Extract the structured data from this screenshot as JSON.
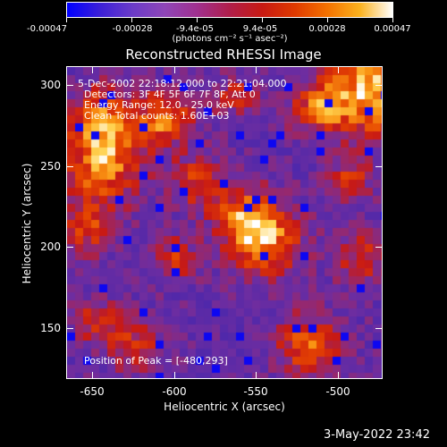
{
  "colorbar": {
    "tick_labels": [
      "-0.00047",
      "-0.00028",
      "-9.4e-05",
      "9.4e-05",
      "0.00028",
      "0.00047"
    ],
    "units": "(photons cm⁻² s⁻¹ asec⁻²)",
    "colors": [
      "#0000ff",
      "#8f46b8",
      "#c81a12",
      "#f47200",
      "#ffffff"
    ]
  },
  "title": "Reconstructed RHESSI Image",
  "annotations": {
    "time_range": "5-Dec-2002 22:18:12.000 to 22:21:04.000",
    "detectors": "Detectors: 3F 4F 5F 6F 7F 8F, Att 0",
    "energy_range": "Energy Range: 12.0 - 25.0 keV",
    "method": "Clean     Total counts: 1.60E+03",
    "peak": "Position of Peak = [-480,293]"
  },
  "axes": {
    "xlabel": "Heliocentric X (arcsec)",
    "ylabel": "Heliocentric Y (arcsec)",
    "x_ticks": [
      "-650",
      "-600",
      "-550",
      "-500"
    ],
    "y_ticks": [
      "150",
      "200",
      "250",
      "300"
    ],
    "x_range": [
      -665,
      -472
    ],
    "y_range": [
      117,
      310
    ]
  },
  "footer": {
    "timestamp": "3-May-2022 23:42"
  }
}
